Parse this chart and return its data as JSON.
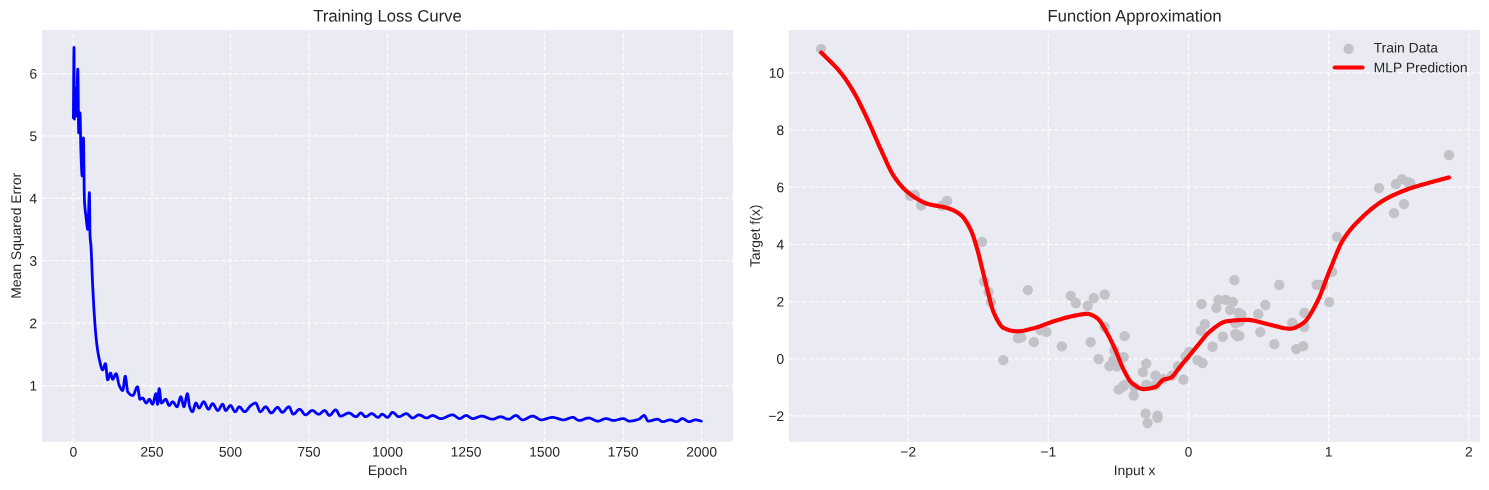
{
  "chart_data": [
    {
      "type": "line",
      "title": "Training Loss Curve",
      "xlabel": "Epoch",
      "ylabel": "Mean Squared Error",
      "grid": true,
      "xlim": [
        -100,
        2100
      ],
      "ylim": [
        0.1,
        6.7
      ],
      "xticks": [
        0,
        250,
        500,
        750,
        1000,
        1250,
        1500,
        1750,
        2000
      ],
      "yticks": [
        1,
        2,
        3,
        4,
        5,
        6
      ],
      "series": [
        {
          "color": "#0000ff",
          "x": [
            0,
            2,
            3,
            6,
            10,
            14,
            17,
            21,
            24,
            28,
            32,
            35,
            40,
            46,
            51,
            53,
            56,
            61,
            67,
            72,
            77,
            83,
            93,
            102,
            109,
            118,
            125,
            136,
            146,
            157,
            165,
            173,
            189,
            204,
            212,
            220,
            232,
            242,
            252,
            263,
            268,
            273,
            280,
            294,
            305,
            316,
            330,
            342,
            352,
            363,
            370,
            379,
            390,
            400,
            415,
            430,
            443,
            460,
            475,
            485,
            500,
            515,
            528,
            545,
            565,
            580,
            595,
            612,
            630,
            650,
            665,
            686,
            700,
            720,
            739,
            760,
            781,
            800,
            815,
            835,
            850,
            877,
            900,
            915,
            930,
            950,
            970,
            983,
            1000,
            1016,
            1036,
            1060,
            1080,
            1100,
            1125,
            1143,
            1170,
            1207,
            1230,
            1250,
            1271,
            1300,
            1334,
            1360,
            1385,
            1409,
            1430,
            1462,
            1490,
            1525,
            1560,
            1590,
            1610,
            1640,
            1670,
            1695,
            1720,
            1750,
            1770,
            1800,
            1817,
            1830,
            1860,
            1876,
            1900,
            1920,
            1939,
            1960,
            1980,
            1999
          ],
          "values": [
            5.29,
            6.42,
            5.27,
            5.77,
            5.32,
            6.07,
            5.05,
            5.37,
            4.73,
            4.36,
            4.97,
            3.98,
            3.71,
            3.5,
            4.09,
            3.4,
            3.23,
            2.64,
            2.1,
            1.78,
            1.57,
            1.41,
            1.25,
            1.35,
            1.09,
            1.2,
            1.1,
            1.19,
            1.0,
            0.92,
            1.15,
            0.9,
            0.84,
            0.98,
            0.78,
            0.8,
            0.72,
            0.78,
            0.7,
            0.87,
            0.7,
            0.95,
            0.72,
            0.78,
            0.68,
            0.74,
            0.66,
            0.82,
            0.66,
            0.87,
            0.66,
            0.58,
            0.72,
            0.64,
            0.74,
            0.62,
            0.71,
            0.6,
            0.7,
            0.6,
            0.68,
            0.58,
            0.66,
            0.58,
            0.68,
            0.72,
            0.58,
            0.66,
            0.56,
            0.65,
            0.57,
            0.66,
            0.54,
            0.62,
            0.53,
            0.6,
            0.54,
            0.6,
            0.52,
            0.61,
            0.51,
            0.56,
            0.5,
            0.56,
            0.5,
            0.55,
            0.49,
            0.54,
            0.49,
            0.57,
            0.5,
            0.55,
            0.48,
            0.53,
            0.48,
            0.52,
            0.47,
            0.53,
            0.47,
            0.52,
            0.47,
            0.51,
            0.46,
            0.5,
            0.46,
            0.52,
            0.45,
            0.51,
            0.45,
            0.49,
            0.45,
            0.49,
            0.44,
            0.48,
            0.43,
            0.47,
            0.44,
            0.47,
            0.43,
            0.46,
            0.52,
            0.43,
            0.46,
            0.42,
            0.45,
            0.42,
            0.47,
            0.42,
            0.45,
            0.43
          ]
        }
      ]
    },
    {
      "type": "scatter",
      "title": "Function Approximation",
      "xlabel": "Input x",
      "ylabel": "Target f(x)",
      "grid": true,
      "legend": "top right",
      "xlim": [
        -2.85,
        2.08
      ],
      "ylim": [
        -2.9,
        11.5
      ],
      "xticks": [
        {
          "value": -2,
          "label": "−2"
        },
        {
          "value": -1,
          "label": "−1"
        },
        0,
        1,
        2
      ],
      "yticks": [
        {
          "value": -2,
          "label": "−2"
        },
        0,
        2,
        4,
        6,
        8,
        10
      ],
      "series": [
        {
          "name": "Train Data",
          "color": "#c2c2c8",
          "marker": "circle",
          "x": [
            -2.621,
            -1.986,
            -1.952,
            -1.907,
            -1.758,
            -1.722,
            -1.473,
            -1.459,
            -1.426,
            -1.409,
            -1.146,
            -1.321,
            -1.217,
            -1.193,
            -1.103,
            -1.056,
            -1.013,
            -0.904,
            -0.84,
            -0.804,
            -0.719,
            -0.676,
            -0.598,
            -0.698,
            -0.641,
            -0.598,
            -0.456,
            -0.529,
            -0.538,
            -0.564,
            -0.51,
            -0.462,
            -0.498,
            -0.467,
            -0.456,
            -0.391,
            -0.386,
            -0.325,
            -0.301,
            -0.301,
            -0.306,
            -0.292,
            -0.235,
            -0.237,
            -0.221,
            -0.221,
            -0.182,
            -0.118,
            -0.075,
            -0.036,
            -0.021,
            0.005,
            0.064,
            0.1,
            0.093,
            0.088,
            0.117,
            0.171,
            0.199,
            0.214,
            0.245,
            0.266,
            0.297,
            0.316,
            0.327,
            0.335,
            0.335,
            0.349,
            0.363,
            0.359,
            0.377,
            0.368,
            0.498,
            0.512,
            0.548,
            0.612,
            0.648,
            0.74,
            0.769,
            0.819,
            0.826,
            0.826,
            0.914,
            0.933,
            0.961,
            1.004,
            1.025,
            1.06,
            1.359,
            1.466,
            1.48,
            1.523,
            1.537,
            1.566,
            1.583,
            1.858
          ],
          "values": [
            10.83,
            5.7,
            5.73,
            5.36,
            5.35,
            5.52,
            4.09,
            2.7,
            2.33,
            1.98,
            2.4,
            -0.05,
            0.72,
            0.75,
            0.58,
            1.0,
            0.94,
            0.43,
            2.2,
            1.95,
            1.85,
            2.12,
            2.24,
            0.58,
            -0.01,
            1.11,
            0.79,
            0.28,
            -0.07,
            -0.26,
            -0.27,
            0.06,
            -1.08,
            -0.97,
            -0.91,
            -1.29,
            -0.99,
            -0.47,
            -0.17,
            -0.91,
            -1.92,
            -2.25,
            -0.59,
            -0.93,
            -1.99,
            -2.07,
            -0.71,
            -0.59,
            -0.27,
            -0.73,
            0.07,
            0.24,
            -0.05,
            -0.15,
            1.91,
            0.98,
            1.21,
            0.42,
            1.78,
            2.06,
            0.77,
            2.06,
            1.71,
            1.99,
            2.75,
            1.25,
            0.87,
            0.78,
            0.8,
            1.6,
            1.54,
            1.3,
            1.56,
            0.93,
            1.88,
            0.51,
            2.58,
            1.25,
            0.34,
            0.44,
            1.6,
            1.11,
            2.58,
            2.58,
            2.58,
            1.98,
            3.04,
            4.26,
            5.97,
            5.09,
            6.11,
            6.28,
            5.41,
            6.18,
            6.14,
            7.12
          ]
        },
        {
          "type": "line",
          "name": "MLP Prediction",
          "color": "#ff0000",
          "x": [
            -2.62,
            -2.479,
            -2.384,
            -2.289,
            -2.194,
            -2.1,
            -2.004,
            -1.862,
            -1.72,
            -1.625,
            -1.554,
            -1.506,
            -1.47,
            -1.435,
            -1.388,
            -1.317,
            -1.221,
            -1.103,
            -0.961,
            -0.819,
            -0.723,
            -0.652,
            -0.581,
            -0.522,
            -0.463,
            -0.403,
            -0.32,
            -0.237,
            -0.178,
            -0.13,
            -0.059,
            0.06,
            0.154,
            0.273,
            0.416,
            0.581,
            0.724,
            0.819,
            0.914,
            1.009,
            1.103,
            1.246,
            1.388,
            1.554,
            1.72,
            1.858
          ],
          "values": [
            10.71,
            9.99,
            9.29,
            8.36,
            7.31,
            6.37,
            5.83,
            5.42,
            5.27,
            5.03,
            4.51,
            3.81,
            3.11,
            2.41,
            1.6,
            1.07,
            0.96,
            1.07,
            1.31,
            1.5,
            1.57,
            1.42,
            0.9,
            0.31,
            -0.38,
            -0.85,
            -1.06,
            -0.99,
            -0.73,
            -0.67,
            -0.27,
            0.43,
            0.96,
            1.31,
            1.36,
            1.19,
            1.05,
            1.25,
            1.95,
            3.11,
            4.16,
            4.98,
            5.53,
            5.91,
            6.16,
            6.34
          ]
        }
      ]
    }
  ]
}
